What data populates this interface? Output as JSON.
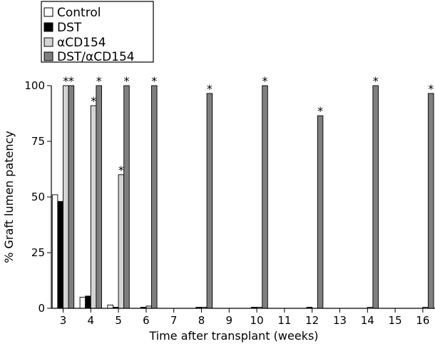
{
  "chart_data": {
    "type": "bar",
    "title": "",
    "xlabel": "Time after transplant (weeks)",
    "ylabel": "% Graft lumen patency",
    "ylim": [
      0,
      100
    ],
    "yticks": [
      0,
      25,
      50,
      75,
      100
    ],
    "categories": [
      "3",
      "4",
      "5",
      "6",
      "7",
      "8",
      "9",
      "10",
      "11",
      "12",
      "13",
      "14",
      "15",
      "16"
    ],
    "legend_position": "top-left",
    "grid": false,
    "significance_marker": "*",
    "series": [
      {
        "name": "Control",
        "color": "#ffffff",
        "values": [
          51,
          5,
          1.5,
          0,
          0,
          0,
          0,
          0,
          0,
          0,
          0,
          0,
          0,
          0
        ],
        "significant": [
          false,
          false,
          false,
          false,
          false,
          false,
          false,
          false,
          false,
          false,
          false,
          false,
          false,
          false
        ]
      },
      {
        "name": "DST",
        "color": "#000000",
        "values": [
          48,
          5.5,
          0.5,
          0.5,
          0,
          0.5,
          0,
          0.5,
          0,
          0.5,
          0,
          0,
          0,
          0
        ],
        "significant": [
          false,
          false,
          false,
          false,
          false,
          false,
          false,
          false,
          false,
          false,
          false,
          false,
          false,
          false
        ]
      },
      {
        "name": "αCD154",
        "color": "#d4d4d4",
        "values": [
          100,
          91,
          60,
          1,
          0,
          0.5,
          0,
          0.5,
          0,
          0,
          0,
          0.5,
          0,
          0.5
        ],
        "significant": [
          true,
          true,
          true,
          false,
          false,
          false,
          false,
          false,
          false,
          false,
          false,
          false,
          false,
          false
        ]
      },
      {
        "name": "DST/αCD154",
        "color": "#7f7f7f",
        "values": [
          100,
          100,
          100,
          100,
          null,
          96.5,
          null,
          100,
          null,
          86.5,
          null,
          100,
          null,
          96.5
        ],
        "significant": [
          true,
          true,
          true,
          true,
          false,
          true,
          false,
          true,
          false,
          true,
          false,
          true,
          false,
          true
        ]
      }
    ]
  }
}
